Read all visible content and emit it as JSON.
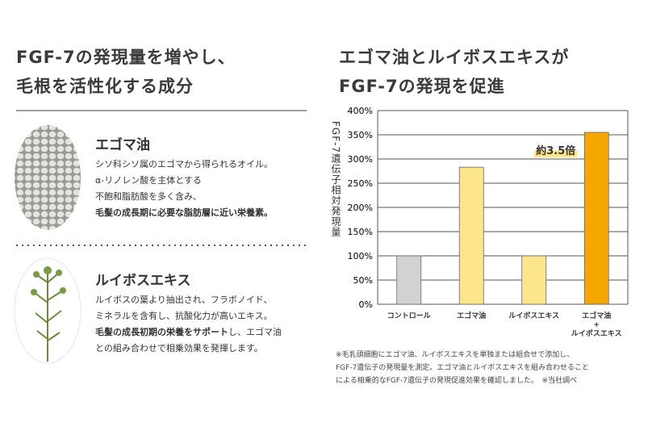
{
  "left": {
    "heading": [
      "FGF-7の発現量を増やし、",
      "毛根を活性化する成分"
    ],
    "items": [
      {
        "title": "エゴマ油",
        "lines": [
          [
            "シソ科シソ属のエゴマから得られるオイル。"
          ],
          [
            "α-リノレン酸を主体とする"
          ],
          [
            "不飽和脂肪酸を多く含み、"
          ],
          [
            "毛髪の成長期に必要な脂肪層に近い栄養素。"
          ]
        ]
      },
      {
        "title": "ルイボスエキス",
        "lines": [
          [
            "ルイボスの葉より抽出され、フラボノイド、"
          ],
          [
            "ミネラルを含有し、抗酸化力が高いエキス。"
          ],
          [
            "毛髪の成長初期の栄養をサポート",
            "し、エゴマ油"
          ],
          [
            "との組み合わせで相乗効果を発揮します。"
          ]
        ]
      }
    ]
  },
  "chart_data": {
    "type": "bar",
    "title": [
      "エゴマ油とルイボスエキスが",
      "FGF-7の発現を促進"
    ],
    "y_label": "FGF-7遺伝子相対発現量",
    "categories": [
      "コントロール",
      "エゴマ油",
      "ルイボスエキス",
      "エゴマ油\n+\nルイボスエキス"
    ],
    "values": [
      100,
      283,
      100,
      355
    ],
    "colors": [
      "#d2d2d2",
      "#fde58c",
      "#fde58c",
      "#f5a700"
    ],
    "ylim": [
      0,
      400
    ],
    "yticks": [
      {
        "value": 0,
        "label": "0%"
      },
      {
        "value": 50,
        "label": "50%"
      },
      {
        "value": 100,
        "label": "100%"
      },
      {
        "value": 150,
        "label": "150%"
      },
      {
        "value": 200,
        "label": "200%"
      },
      {
        "value": 250,
        "label": "250%"
      },
      {
        "value": 300,
        "label": "300%"
      },
      {
        "value": 350,
        "label": "350%"
      },
      {
        "value": 400,
        "label": "400%"
      }
    ],
    "grid": true,
    "annotation": "約3.5倍",
    "footnote": [
      "※毛乳頭細胞にエゴマ油、ルイボスエキスを単独または組合せで添加し、",
      "FGF-7遺伝子の発現量を測定。エゴマ油とルイボスエキスを組み合わせること",
      "による相乗的なFGF-7遺伝子の発現促進効果を確認しました。　※当社調べ"
    ]
  }
}
